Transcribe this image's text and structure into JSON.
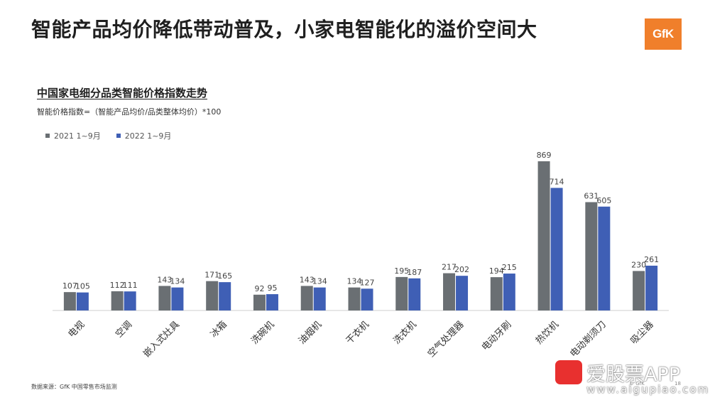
{
  "headline": "智能产品均价降低带动普及，小家电智能化的溢价空间大",
  "logo_text": "GfK",
  "chart_data": {
    "type": "bar",
    "title": "中国家电细分品类智能价格指数走势",
    "subtitle": "智能价格指数=（智能产品均价/品类整体均价）*100",
    "categories": [
      "电视",
      "空调",
      "嵌入式灶具",
      "冰箱",
      "洗碗机",
      "油烟机",
      "干衣机",
      "洗衣机",
      "空气处理器",
      "电动牙刷",
      "热饮机",
      "电动剃须刀",
      "吸尘器"
    ],
    "series": [
      {
        "name": "2021 1~9月",
        "color": "#6a6f73",
        "values": [
          107,
          112,
          143,
          171,
          92,
          143,
          134,
          195,
          217,
          194,
          869,
          631,
          230
        ]
      },
      {
        "name": "2022 1~9月",
        "color": "#3f5fb5",
        "values": [
          105,
          111,
          134,
          165,
          95,
          134,
          127,
          187,
          202,
          215,
          714,
          605,
          261
        ]
      }
    ],
    "ylim": [
      0,
      869
    ],
    "legend_position": "top-left",
    "grid": false,
    "show_y_axis": false
  },
  "footer": {
    "source": "数据来源：GfK 中国零售市场监测",
    "copyright": "© GfK",
    "page": "18"
  },
  "watermark": {
    "name": "爱股票APP",
    "url": "www.aigupiao.com"
  }
}
